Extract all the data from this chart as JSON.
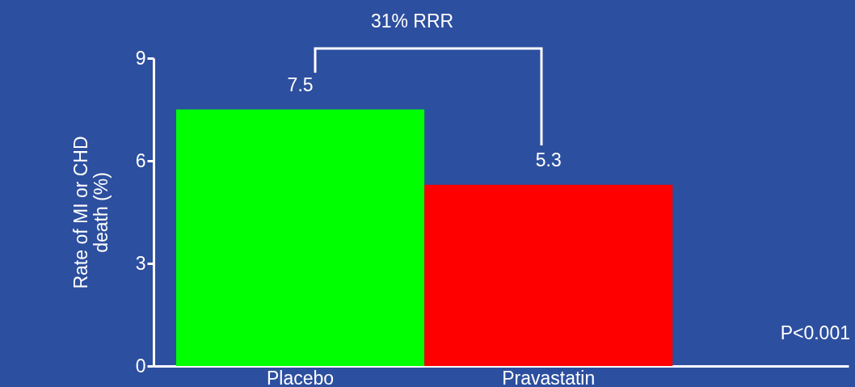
{
  "chart_data": {
    "type": "bar",
    "ylabel": "Rate of MI or CHD death (%)",
    "categories": [
      "Placebo",
      "Pravastatin"
    ],
    "values": [
      7.5,
      5.3
    ],
    "colors": [
      "#00ff00",
      "#ff0000"
    ],
    "ylim": [
      0,
      9
    ],
    "yticks": [
      0,
      3,
      6,
      9
    ],
    "grid": false,
    "data_labels": true,
    "annotations": [
      "31% RRR",
      "P<0.001"
    ]
  }
}
